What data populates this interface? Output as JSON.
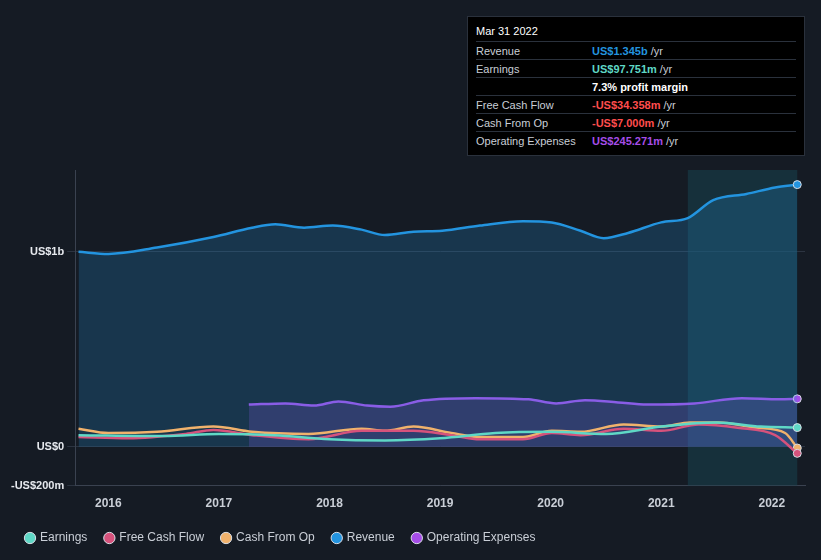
{
  "chart_data": {
    "type": "line",
    "xlim": [
      2015.7,
      2022.3
    ],
    "xticks": [
      2016,
      2017,
      2018,
      2019,
      2020,
      2021,
      2022
    ],
    "ylim": [
      -200,
      1420
    ],
    "yticks": [
      {
        "value": -200,
        "label": "-US$200m"
      },
      {
        "value": 0,
        "label": "US$0"
      },
      {
        "value": 1000,
        "label": "US$1b"
      }
    ],
    "grid": true,
    "legend": "bottom left",
    "shaded_region": [
      2021.24,
      2022.23
    ],
    "tooltip": {
      "title": "Mar 31 2022",
      "rows": [
        {
          "label": "Revenue",
          "value": "US$1.345b",
          "unit": "/yr"
        },
        {
          "label": "Earnings",
          "value": "US$97.751m",
          "unit": "/yr"
        },
        {
          "text": "7.3% profit margin"
        },
        {
          "label": "Free Cash Flow",
          "value": "-US$34.358m",
          "unit": "/yr"
        },
        {
          "label": "Cash From Op",
          "value": "-US$7.000m",
          "unit": "/yr"
        },
        {
          "label": "Operating Expenses",
          "value": "US$245.271m",
          "unit": "/yr"
        }
      ]
    },
    "series": [
      {
        "name": "Revenue",
        "color": "#2394df",
        "type": "area",
        "x": [
          2015.73,
          2016.0,
          2016.44,
          2016.95,
          2017.3,
          2017.51,
          2017.77,
          2018.03,
          2018.29,
          2018.5,
          2018.76,
          2019.02,
          2019.36,
          2019.75,
          2020.01,
          2020.27,
          2020.48,
          2020.7,
          2021.0,
          2021.24,
          2021.47,
          2021.77,
          2022.03,
          2022.23
        ],
        "values": [
          1000,
          989,
          1022,
          1076,
          1124,
          1141,
          1124,
          1135,
          1114,
          1086,
          1103,
          1108,
          1135,
          1157,
          1151,
          1108,
          1070,
          1097,
          1151,
          1173,
          1265,
          1297,
          1330,
          1345
        ]
      },
      {
        "name": "Earnings",
        "color": "#5fd8c6",
        "type": "line",
        "x": [
          2015.73,
          2016.5,
          2017.0,
          2017.5,
          2018.0,
          2018.5,
          2019.0,
          2019.5,
          2020.0,
          2020.5,
          2021.0,
          2021.5,
          2021.9,
          2022.23
        ],
        "values": [
          59,
          54,
          65,
          59,
          38,
          32,
          43,
          70,
          76,
          65,
          103,
          124,
          103,
          97.751
        ]
      },
      {
        "name": "Free Cash Flow",
        "color": "#d6527c",
        "type": "line",
        "x": [
          2015.73,
          2016.18,
          2016.7,
          2016.95,
          2017.3,
          2017.81,
          2018.29,
          2018.76,
          2019.1,
          2019.36,
          2019.75,
          2020.01,
          2020.27,
          2020.66,
          2021.0,
          2021.34,
          2021.69,
          2022.03,
          2022.23
        ],
        "values": [
          49,
          43,
          65,
          86,
          59,
          38,
          81,
          81,
          59,
          38,
          38,
          70,
          59,
          92,
          81,
          114,
          97,
          59,
          -34.358
        ]
      },
      {
        "name": "Cash From Op",
        "color": "#f0b26c",
        "type": "line",
        "x": [
          2015.73,
          2016.0,
          2016.44,
          2016.95,
          2017.3,
          2017.81,
          2018.29,
          2018.5,
          2018.76,
          2019.1,
          2019.36,
          2019.75,
          2020.01,
          2020.27,
          2020.66,
          2021.0,
          2021.26,
          2021.52,
          2021.86,
          2022.12,
          2022.23
        ],
        "values": [
          92,
          70,
          76,
          103,
          76,
          65,
          92,
          81,
          103,
          70,
          49,
          49,
          81,
          76,
          114,
          103,
          124,
          124,
          97,
          70,
          -7
        ]
      },
      {
        "name": "Operating Expenses",
        "color": "#a64de8",
        "type": "area",
        "x": [
          2017.27,
          2017.6,
          2017.86,
          2018.08,
          2018.34,
          2018.55,
          2018.85,
          2019.32,
          2019.8,
          2020.05,
          2020.31,
          2020.61,
          2020.87,
          2021.3,
          2021.73,
          2022.07,
          2022.23
        ],
        "values": [
          216,
          222,
          211,
          232,
          211,
          205,
          238,
          249,
          243,
          222,
          238,
          227,
          216,
          222,
          249,
          243,
          245.271
        ]
      }
    ]
  }
}
